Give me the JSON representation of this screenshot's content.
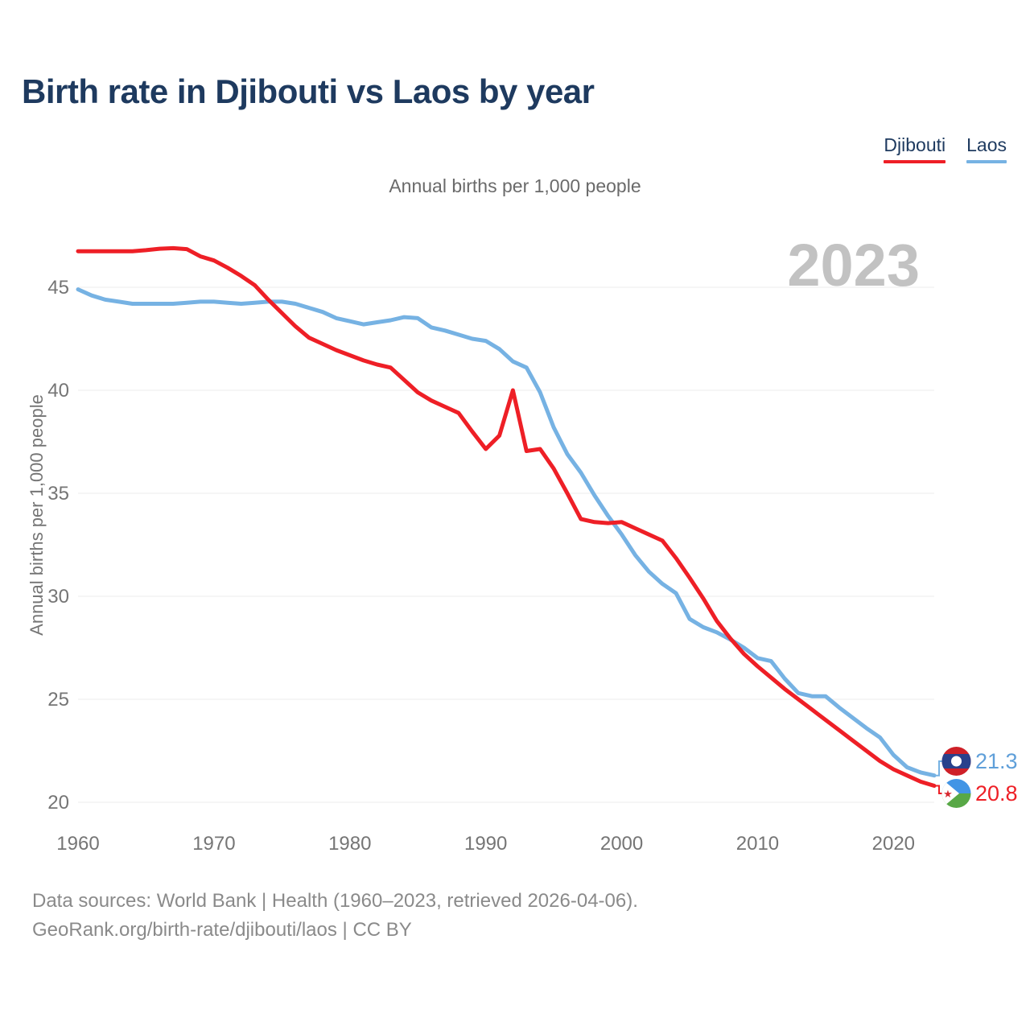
{
  "page": {
    "title": "Birth rate in Djibouti vs Laos by year"
  },
  "legend": [
    {
      "label": "Djibouti",
      "color": "#ee1f26"
    },
    {
      "label": "Laos",
      "color": "#76b2e3"
    }
  ],
  "subtitle": "Annual births per 1,000 people",
  "watermark": "2023",
  "footer": {
    "line1": "Data sources: World Bank | Health (1960–2023, retrieved 2026-04-06).",
    "line2": "GeoRank.org/birth-rate/djibouti/laos | CC BY"
  },
  "colors": {
    "title": "#1e3a5f",
    "axis_text": "#757575",
    "gridline": "#ececec",
    "watermark": "#c2c2c2",
    "djibouti_line": "#ee1f26",
    "laos_line": "#76b2e3",
    "laos_value_label": "#5f9fd9",
    "djibouti_value_label": "#ee1f26"
  },
  "flags": {
    "laos": {
      "red": "#ce2028",
      "blue": "#28418c",
      "circle": "#ffffff"
    },
    "djibouti": {
      "blue": "#4295e5",
      "green": "#58a846",
      "triangle": "#ffffff",
      "star": "#d7282f"
    }
  },
  "chart_data": {
    "type": "line",
    "title": "Birth rate in Djibouti vs Laos by year",
    "subtitle": "Annual births per 1,000 people",
    "ylabel": "Annual births per 1,000 people",
    "grid": "horizontal",
    "legend_position": "top-right",
    "xlim": [
      1960,
      2023
    ],
    "ylim": [
      19.5,
      47.5
    ],
    "y_ticks": [
      45,
      40,
      35,
      30,
      25,
      20
    ],
    "x_ticks": [
      1960,
      1970,
      1980,
      1990,
      2000,
      2010,
      2020
    ],
    "years": [
      1960,
      1961,
      1962,
      1963,
      1964,
      1965,
      1966,
      1967,
      1968,
      1969,
      1970,
      1971,
      1972,
      1973,
      1974,
      1975,
      1976,
      1977,
      1978,
      1979,
      1980,
      1981,
      1982,
      1983,
      1984,
      1985,
      1986,
      1987,
      1988,
      1989,
      1990,
      1991,
      1992,
      1993,
      1994,
      1995,
      1996,
      1997,
      1998,
      1999,
      2000,
      2001,
      2002,
      2003,
      2004,
      2005,
      2006,
      2007,
      2008,
      2009,
      2010,
      2011,
      2012,
      2013,
      2014,
      2015,
      2016,
      2017,
      2018,
      2019,
      2020,
      2021,
      2022,
      2023
    ],
    "series": [
      {
        "name": "Djibouti",
        "color": "#ee1f26",
        "values": [
          46.75,
          46.75,
          46.75,
          46.75,
          46.75,
          46.8,
          46.87,
          46.9,
          46.85,
          46.5,
          46.3,
          45.95,
          45.55,
          45.1,
          44.4,
          43.75,
          43.1,
          42.55,
          42.25,
          41.95,
          41.7,
          41.45,
          41.25,
          41.1,
          40.5,
          39.9,
          39.5,
          39.2,
          38.9,
          38.0,
          37.15,
          37.8,
          40.0,
          37.05,
          37.15,
          36.2,
          35.0,
          33.75,
          33.6,
          33.55,
          33.6,
          33.3,
          33.0,
          32.7,
          31.85,
          30.9,
          29.9,
          28.8,
          27.95,
          27.2,
          26.6,
          26.05,
          25.5,
          25.0,
          24.5,
          24.0,
          23.5,
          23.0,
          22.5,
          22.0,
          21.6,
          21.3,
          21.0,
          20.8
        ]
      },
      {
        "name": "Laos",
        "color": "#76b2e3",
        "values": [
          44.9,
          44.6,
          44.4,
          44.3,
          44.2,
          44.2,
          44.2,
          44.2,
          44.25,
          44.3,
          44.3,
          44.25,
          44.2,
          44.25,
          44.3,
          44.3,
          44.2,
          44.0,
          43.8,
          43.5,
          43.35,
          43.2,
          43.3,
          43.4,
          43.55,
          43.5,
          43.05,
          42.9,
          42.7,
          42.5,
          42.4,
          42.0,
          41.4,
          41.1,
          39.9,
          38.2,
          36.9,
          36.0,
          34.9,
          33.9,
          33.0,
          32.0,
          31.2,
          30.6,
          30.15,
          28.9,
          28.5,
          28.25,
          27.9,
          27.5,
          27.0,
          26.85,
          26.0,
          25.3,
          25.15,
          25.15,
          24.6,
          24.1,
          23.6,
          23.15,
          22.3,
          21.7,
          21.45,
          21.3
        ]
      }
    ],
    "end_labels": [
      {
        "series": "Laos",
        "value": "21.3",
        "year": 2023
      },
      {
        "series": "Djibouti",
        "value": "20.8",
        "year": 2023
      }
    ]
  }
}
